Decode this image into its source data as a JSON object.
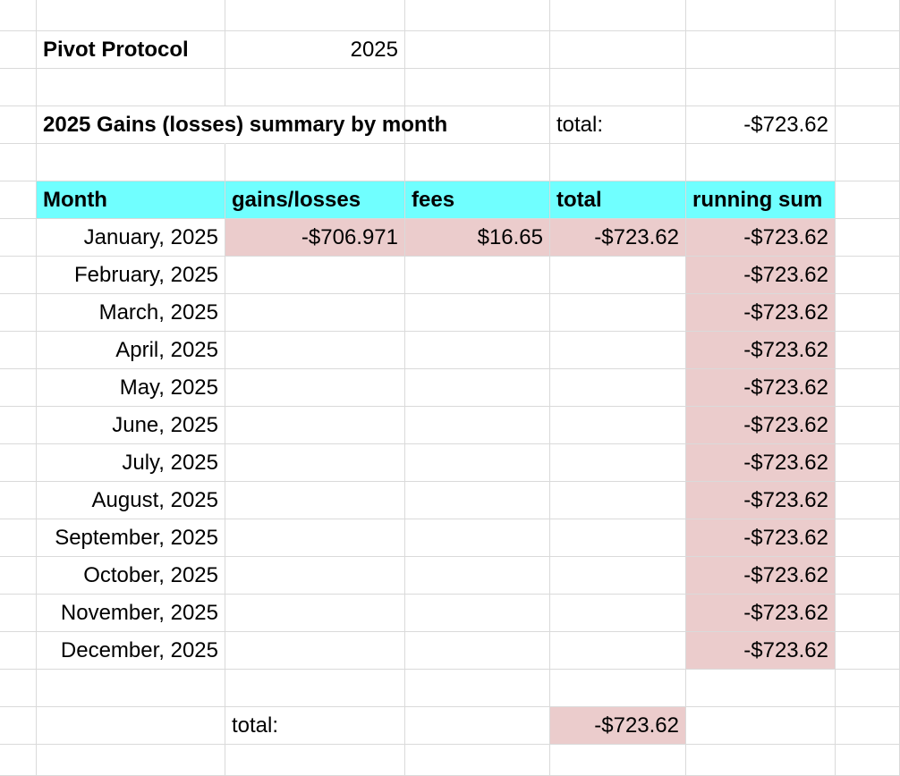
{
  "sheet": {
    "app_label": "Pivot Protocol",
    "year": "2025",
    "summary_title": "2025 Gains (losses) summary by month",
    "total_label": "total:",
    "total_value": "-$723.62"
  },
  "table": {
    "headers": [
      "Month",
      "gains/losses",
      "fees",
      "total",
      "running sum"
    ],
    "header_color": "#70ffff",
    "highlight_color": "#ebcccc",
    "rows": [
      {
        "month": "January, 2025",
        "gains": "-$706.971",
        "fees": "$16.65",
        "total": "-$723.62",
        "running": "-$723.62"
      },
      {
        "month": "February, 2025",
        "gains": "",
        "fees": "",
        "total": "",
        "running": "-$723.62"
      },
      {
        "month": "March, 2025",
        "gains": "",
        "fees": "",
        "total": "",
        "running": "-$723.62"
      },
      {
        "month": "April, 2025",
        "gains": "",
        "fees": "",
        "total": "",
        "running": "-$723.62"
      },
      {
        "month": "May, 2025",
        "gains": "",
        "fees": "",
        "total": "",
        "running": "-$723.62"
      },
      {
        "month": "June, 2025",
        "gains": "",
        "fees": "",
        "total": "",
        "running": "-$723.62"
      },
      {
        "month": "July, 2025",
        "gains": "",
        "fees": "",
        "total": "",
        "running": "-$723.62"
      },
      {
        "month": "August, 2025",
        "gains": "",
        "fees": "",
        "total": "",
        "running": "-$723.62"
      },
      {
        "month": "September, 2025",
        "gains": "",
        "fees": "",
        "total": "",
        "running": "-$723.62"
      },
      {
        "month": "October, 2025",
        "gains": "",
        "fees": "",
        "total": "",
        "running": "-$723.62"
      },
      {
        "month": "November, 2025",
        "gains": "",
        "fees": "",
        "total": "",
        "running": "-$723.62"
      },
      {
        "month": "December, 2025",
        "gains": "",
        "fees": "",
        "total": "",
        "running": "-$723.62"
      }
    ]
  },
  "footer": {
    "total_label": "total:",
    "total_value": "-$723.62"
  }
}
